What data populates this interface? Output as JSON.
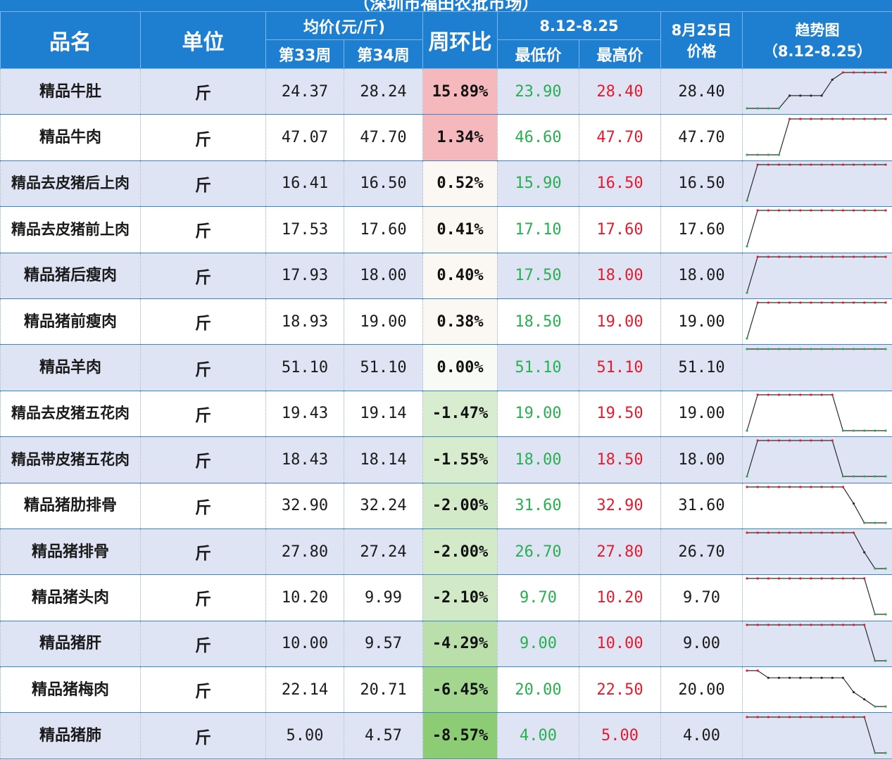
{
  "title": "（深圳市福田农批市场）",
  "headers": {
    "name": "品名",
    "unit": "单位",
    "avg": "均价(元/斤)",
    "w33": "第33周",
    "w34": "第34周",
    "change": "周环比",
    "range": "8.12-8.25",
    "low": "最低价",
    "high": "最高价",
    "date_line1": "8月25日",
    "date_line2": "价格",
    "trend_line1": "趋势图",
    "trend_line2": "（8.12-8.25）"
  },
  "colors": {
    "header_bg": "#1e7fd0",
    "row_alt": "#dfe4f5",
    "low_price": "#27b050",
    "high_price": "#e8192c",
    "positive_change": "#f4b8bd",
    "negative_change": "#8ccc74"
  },
  "rows": [
    {
      "name": "精品牛肚",
      "unit": "斤",
      "w33": "24.37",
      "w34": "28.24",
      "change": "15.89%",
      "change_value": 15.89,
      "low": "23.90",
      "high": "28.40",
      "price": "28.40",
      "trend": [
        23.9,
        23.9,
        23.9,
        23.9,
        25.5,
        25.5,
        25.5,
        25.5,
        27.5,
        28.4,
        28.4,
        28.4,
        28.4,
        28.4
      ]
    },
    {
      "name": "精品牛肉",
      "unit": "斤",
      "w33": "47.07",
      "w34": "47.70",
      "change": "1.34%",
      "change_value": 1.34,
      "low": "46.60",
      "high": "47.70",
      "price": "47.70",
      "trend": [
        46.6,
        46.6,
        46.6,
        46.6,
        47.7,
        47.7,
        47.7,
        47.7,
        47.7,
        47.7,
        47.7,
        47.7,
        47.7,
        47.7
      ]
    },
    {
      "name": "精品去皮猪后上肉",
      "unit": "斤",
      "w33": "16.41",
      "w34": "16.50",
      "change": "0.52%",
      "change_value": 0.52,
      "low": "15.90",
      "high": "16.50",
      "price": "16.50",
      "trend": [
        15.9,
        16.5,
        16.5,
        16.5,
        16.5,
        16.5,
        16.5,
        16.5,
        16.5,
        16.5,
        16.5,
        16.5,
        16.5,
        16.5
      ]
    },
    {
      "name": "精品去皮猪前上肉",
      "unit": "斤",
      "w33": "17.53",
      "w34": "17.60",
      "change": "0.41%",
      "change_value": 0.41,
      "low": "17.10",
      "high": "17.60",
      "price": "17.60",
      "trend": [
        17.1,
        17.6,
        17.6,
        17.6,
        17.6,
        17.6,
        17.6,
        17.6,
        17.6,
        17.6,
        17.6,
        17.6,
        17.6,
        17.6
      ]
    },
    {
      "name": "精品猪后瘦肉",
      "unit": "斤",
      "w33": "17.93",
      "w34": "18.00",
      "change": "0.40%",
      "change_value": 0.4,
      "low": "17.50",
      "high": "18.00",
      "price": "18.00",
      "trend": [
        17.5,
        18.0,
        18.0,
        18.0,
        18.0,
        18.0,
        18.0,
        18.0,
        18.0,
        18.0,
        18.0,
        18.0,
        18.0,
        18.0
      ]
    },
    {
      "name": "精品猪前瘦肉",
      "unit": "斤",
      "w33": "18.93",
      "w34": "19.00",
      "change": "0.38%",
      "change_value": 0.38,
      "low": "18.50",
      "high": "19.00",
      "price": "19.00",
      "trend": [
        18.5,
        19.0,
        19.0,
        19.0,
        19.0,
        19.0,
        19.0,
        19.0,
        19.0,
        19.0,
        19.0,
        19.0,
        19.0,
        19.0
      ]
    },
    {
      "name": "精品羊肉",
      "unit": "斤",
      "w33": "51.10",
      "w34": "51.10",
      "change": "0.00%",
      "change_value": 0.0,
      "low": "51.10",
      "high": "51.10",
      "price": "51.10",
      "trend": [
        51.1,
        51.1,
        51.1,
        51.1,
        51.1,
        51.1,
        51.1,
        51.1,
        51.1,
        51.1,
        51.1,
        51.1,
        51.1,
        51.1
      ]
    },
    {
      "name": "精品去皮猪五花肉",
      "unit": "斤",
      "w33": "19.43",
      "w34": "19.14",
      "change": "-1.47%",
      "change_value": -1.47,
      "low": "19.00",
      "high": "19.50",
      "price": "19.00",
      "trend": [
        19.0,
        19.5,
        19.5,
        19.5,
        19.5,
        19.5,
        19.5,
        19.5,
        19.5,
        19.0,
        19.0,
        19.0,
        19.0,
        19.0
      ]
    },
    {
      "name": "精品带皮猪五花肉",
      "unit": "斤",
      "w33": "18.43",
      "w34": "18.14",
      "change": "-1.55%",
      "change_value": -1.55,
      "low": "18.00",
      "high": "18.50",
      "price": "18.00",
      "trend": [
        18.0,
        18.5,
        18.5,
        18.5,
        18.5,
        18.5,
        18.5,
        18.5,
        18.5,
        18.0,
        18.0,
        18.0,
        18.0,
        18.0
      ]
    },
    {
      "name": "精品猪肋排骨",
      "unit": "斤",
      "w33": "32.90",
      "w34": "32.24",
      "change": "-2.00%",
      "change_value": -2.0,
      "low": "31.60",
      "high": "32.90",
      "price": "31.60",
      "trend": [
        32.9,
        32.9,
        32.9,
        32.9,
        32.9,
        32.9,
        32.9,
        32.9,
        32.9,
        32.9,
        32.3,
        31.6,
        31.6,
        31.6
      ]
    },
    {
      "name": "精品猪排骨",
      "unit": "斤",
      "w33": "27.80",
      "w34": "27.24",
      "change": "-2.00%",
      "change_value": -2.0,
      "low": "26.70",
      "high": "27.80",
      "price": "26.70",
      "trend": [
        27.8,
        27.8,
        27.8,
        27.8,
        27.8,
        27.8,
        27.8,
        27.8,
        27.8,
        27.8,
        27.8,
        27.2,
        26.7,
        26.7
      ]
    },
    {
      "name": "精品猪头肉",
      "unit": "斤",
      "w33": "10.20",
      "w34": "9.99",
      "change": "-2.10%",
      "change_value": -2.1,
      "low": "9.70",
      "high": "10.20",
      "price": "9.70",
      "trend": [
        10.2,
        10.2,
        10.2,
        10.2,
        10.2,
        10.2,
        10.2,
        10.2,
        10.2,
        10.2,
        10.2,
        10.2,
        9.7,
        9.7
      ]
    },
    {
      "name": "精品猪肝",
      "unit": "斤",
      "w33": "10.00",
      "w34": "9.57",
      "change": "-4.29%",
      "change_value": -4.29,
      "low": "9.00",
      "high": "10.00",
      "price": "9.00",
      "trend": [
        10.0,
        10.0,
        10.0,
        10.0,
        10.0,
        10.0,
        10.0,
        10.0,
        10.0,
        10.0,
        10.0,
        10.0,
        9.0,
        9.0
      ]
    },
    {
      "name": "精品猪梅肉",
      "unit": "斤",
      "w33": "22.14",
      "w34": "20.71",
      "change": "-6.45%",
      "change_value": -6.45,
      "low": "20.00",
      "high": "22.50",
      "price": "20.00",
      "trend": [
        22.5,
        22.5,
        22.0,
        22.0,
        22.0,
        22.0,
        22.0,
        22.0,
        22.0,
        22.0,
        21.0,
        20.5,
        20.0,
        20.0
      ]
    },
    {
      "name": "精品猪肺",
      "unit": "斤",
      "w33": "5.00",
      "w34": "4.57",
      "change": "-8.57%",
      "change_value": -8.57,
      "low": "4.00",
      "high": "5.00",
      "price": "4.00",
      "trend": [
        5.0,
        5.0,
        5.0,
        5.0,
        5.0,
        5.0,
        5.0,
        5.0,
        5.0,
        5.0,
        5.0,
        5.0,
        4.0,
        4.0
      ]
    }
  ]
}
